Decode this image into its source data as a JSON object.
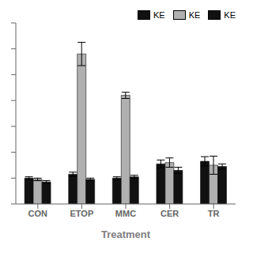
{
  "chart_data": {
    "type": "bar",
    "xlabel": "Treatment",
    "categories": [
      "CON",
      "ETOP",
      "MMC",
      "CER",
      "TR"
    ],
    "series": [
      {
        "name": "KE",
        "color": "#111111",
        "values": [
          1.0,
          1.15,
          1.0,
          1.55,
          1.65
        ],
        "errors": [
          0.05,
          0.08,
          0.05,
          0.15,
          0.18
        ]
      },
      {
        "name": "KE",
        "color": "#b0b0b0",
        "values": [
          0.95,
          5.8,
          4.2,
          1.6,
          1.5
        ],
        "errors": [
          0.05,
          0.45,
          0.12,
          0.18,
          0.35
        ]
      },
      {
        "name": "KE",
        "color": "#111111",
        "values": [
          0.85,
          0.95,
          1.05,
          1.3,
          1.45
        ],
        "errors": [
          0.05,
          0.05,
          0.06,
          0.12,
          0.1
        ]
      }
    ],
    "ylim": [
      0,
      7
    ],
    "yticks": [
      0,
      1,
      2,
      3,
      4,
      5,
      6,
      7
    ],
    "tick_labels": "x",
    "legend": "upper right",
    "grid": false
  }
}
